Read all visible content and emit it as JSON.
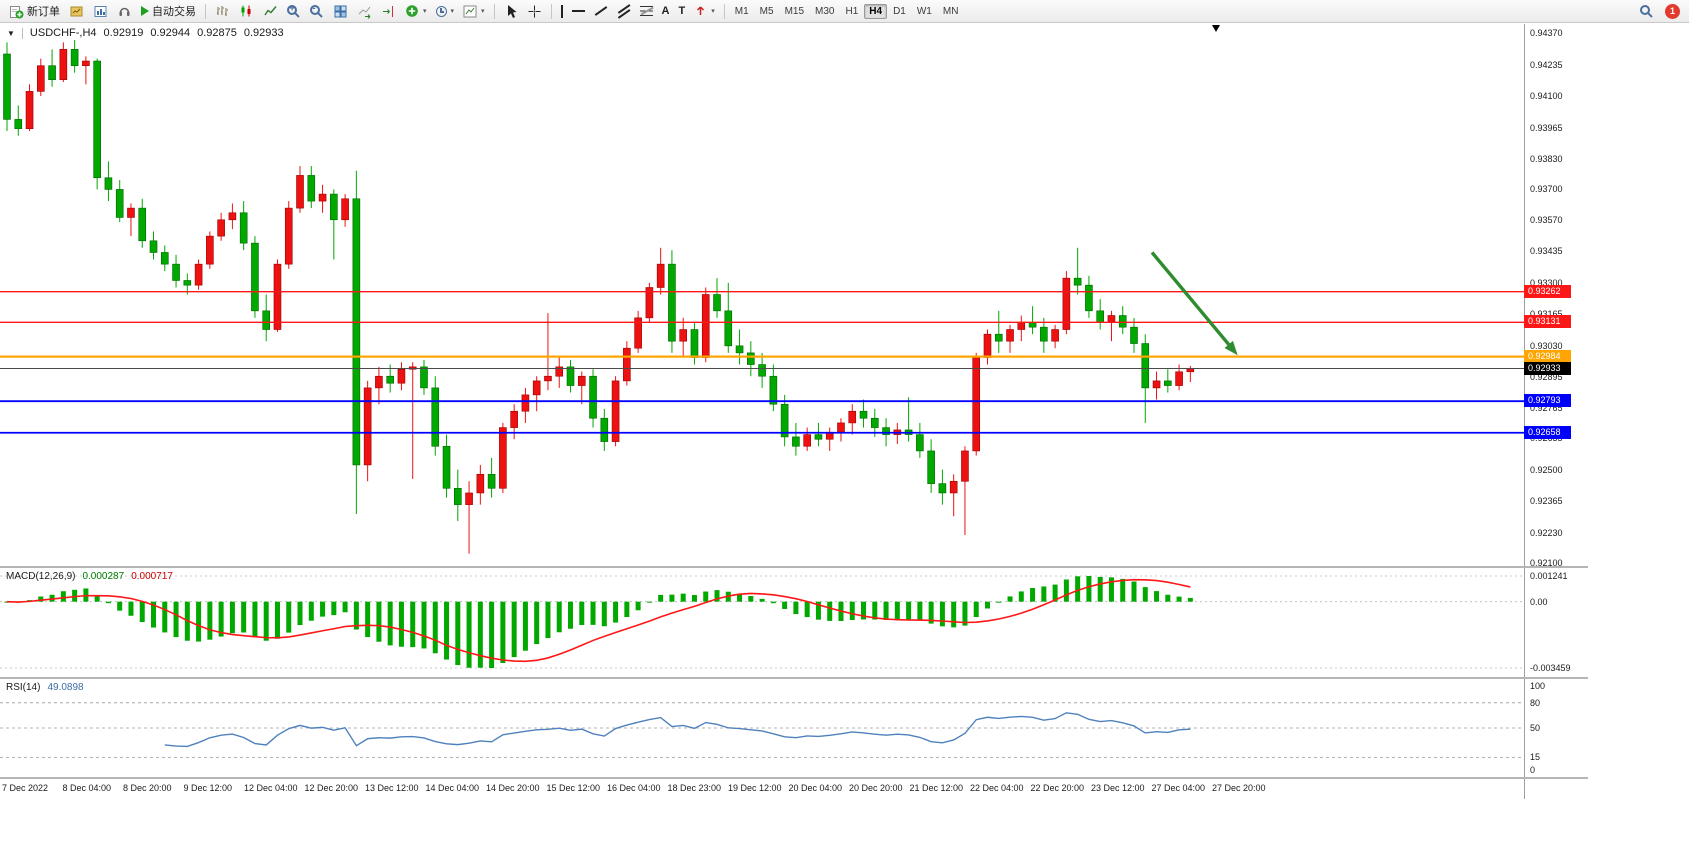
{
  "toolbar": {
    "new_order": "新订单",
    "autotrading": "自动交易",
    "timeframe_buttons": [
      "M1",
      "M5",
      "M15",
      "M30",
      "H1",
      "H4",
      "D1",
      "W1",
      "MN"
    ],
    "active_timeframe": "H4",
    "notification_badge": "1",
    "glyphs": {
      "caret_down": "▾",
      "text_tool": "A",
      "label_tool": "T"
    }
  },
  "chart": {
    "symbol_header": {
      "collapse_arrow": "▼",
      "symbol": "USDCHF-,H4",
      "open": "0.92919",
      "high": "0.92944",
      "low": "0.92875",
      "close": "0.92933"
    }
  },
  "chart_data": {
    "type": "candlestick",
    "symbol": "USDCHF-",
    "timeframe": "H4",
    "up_color": "#ee1111",
    "down_color": "#00a800",
    "y_axis": {
      "min": 0.921,
      "max": 0.9437,
      "labels": [
        "0.94370",
        "0.94235",
        "0.94100",
        "0.93965",
        "0.93830",
        "0.93700",
        "0.93570",
        "0.93435",
        "0.93300",
        "0.93165",
        "0.93030",
        "0.92895",
        "0.92765",
        "0.92635",
        "0.92500",
        "0.92365",
        "0.92230",
        "0.92100"
      ]
    },
    "x_axis": {
      "labels": [
        "7 Dec 2022",
        "8 Dec 04:00",
        "8 Dec 20:00",
        "9 Dec 12:00",
        "12 Dec 04:00",
        "12 Dec 20:00",
        "13 Dec 12:00",
        "14 Dec 04:00",
        "14 Dec 20:00",
        "15 Dec 12:00",
        "16 Dec 04:00",
        "18 Dec 23:00",
        "19 Dec 12:00",
        "20 Dec 04:00",
        "20 Dec 20:00",
        "21 Dec 12:00",
        "22 Dec 04:00",
        "22 Dec 20:00",
        "23 Dec 12:00",
        "27 Dec 04:00",
        "27 Dec 20:00"
      ]
    },
    "levels": [
      {
        "price": 0.93262,
        "label": "0.93262",
        "line_color": "#ff1616",
        "tag_color": "#ff1616",
        "width": 1.4,
        "kind": "resistance"
      },
      {
        "price": 0.93131,
        "label": "0.93131",
        "line_color": "#ff1616",
        "tag_color": "#ff1616",
        "width": 1.4,
        "kind": "resistance"
      },
      {
        "price": 0.92984,
        "label": "0.92984",
        "line_color": "#ffa500",
        "tag_color": "#ffa500",
        "width": 2.2,
        "kind": "pivot"
      },
      {
        "price": 0.92933,
        "label": "0.92933",
        "line_color": "#4a4a4a",
        "tag_color": "#000000",
        "width": 1.1,
        "kind": "current-price"
      },
      {
        "price": 0.92793,
        "label": "0.92793",
        "line_color": "#0000ff",
        "tag_color": "#0000ff",
        "width": 1.8,
        "kind": "support"
      },
      {
        "price": 0.92658,
        "label": "0.92658",
        "line_color": "#0000ff",
        "tag_color": "#0000ff",
        "width": 1.8,
        "kind": "support"
      }
    ],
    "annotation_arrow": {
      "from_bar": 101.6,
      "from_price": 0.9343,
      "to_bar": 109.2,
      "to_price": 0.9299,
      "color": "#2e8b2e"
    },
    "candles": [
      [
        0.9428,
        0.9433,
        0.9395,
        0.94
      ],
      [
        0.94,
        0.9406,
        0.9393,
        0.9396
      ],
      [
        0.9396,
        0.9415,
        0.9395,
        0.9412
      ],
      [
        0.9412,
        0.9426,
        0.941,
        0.9423
      ],
      [
        0.9423,
        0.943,
        0.9414,
        0.9417
      ],
      [
        0.9417,
        0.9433,
        0.9416,
        0.943
      ],
      [
        0.943,
        0.9434,
        0.942,
        0.9423
      ],
      [
        0.9423,
        0.9427,
        0.9415,
        0.9425
      ],
      [
        0.9425,
        0.9426,
        0.937,
        0.9375
      ],
      [
        0.9375,
        0.9382,
        0.9365,
        0.937
      ],
      [
        0.937,
        0.9374,
        0.9356,
        0.9358
      ],
      [
        0.9358,
        0.9364,
        0.935,
        0.9362
      ],
      [
        0.9362,
        0.9366,
        0.9345,
        0.9348
      ],
      [
        0.9348,
        0.9352,
        0.934,
        0.9343
      ],
      [
        0.9343,
        0.9346,
        0.9335,
        0.9338
      ],
      [
        0.9338,
        0.9342,
        0.9328,
        0.9331
      ],
      [
        0.9331,
        0.9334,
        0.9325,
        0.9329
      ],
      [
        0.9329,
        0.934,
        0.9327,
        0.9338
      ],
      [
        0.9338,
        0.9352,
        0.9336,
        0.935
      ],
      [
        0.935,
        0.936,
        0.9348,
        0.9357
      ],
      [
        0.9357,
        0.9364,
        0.9353,
        0.936
      ],
      [
        0.936,
        0.9365,
        0.9344,
        0.9347
      ],
      [
        0.9347,
        0.935,
        0.9315,
        0.9318
      ],
      [
        0.9318,
        0.9325,
        0.9305,
        0.931
      ],
      [
        0.931,
        0.934,
        0.9309,
        0.9338
      ],
      [
        0.9338,
        0.9365,
        0.9336,
        0.9362
      ],
      [
        0.9362,
        0.938,
        0.936,
        0.9376
      ],
      [
        0.9376,
        0.938,
        0.9362,
        0.9365
      ],
      [
        0.9365,
        0.9372,
        0.936,
        0.9368
      ],
      [
        0.9368,
        0.937,
        0.934,
        0.9357
      ],
      [
        0.9357,
        0.9368,
        0.9354,
        0.9366
      ],
      [
        0.9366,
        0.9378,
        0.9231,
        0.9252
      ],
      [
        0.9252,
        0.9288,
        0.9245,
        0.9285
      ],
      [
        0.9285,
        0.9294,
        0.9278,
        0.929
      ],
      [
        0.929,
        0.9295,
        0.9283,
        0.9287
      ],
      [
        0.9287,
        0.9296,
        0.9284,
        0.9293
      ],
      [
        0.9293,
        0.9296,
        0.9246,
        0.9294
      ],
      [
        0.9294,
        0.9297,
        0.9282,
        0.9285
      ],
      [
        0.9285,
        0.929,
        0.9256,
        0.926
      ],
      [
        0.926,
        0.9265,
        0.9238,
        0.9242
      ],
      [
        0.9242,
        0.925,
        0.9228,
        0.9235
      ],
      [
        0.9235,
        0.9245,
        0.9214,
        0.924
      ],
      [
        0.924,
        0.9252,
        0.9235,
        0.9248
      ],
      [
        0.9248,
        0.9255,
        0.9238,
        0.9242
      ],
      [
        0.9242,
        0.927,
        0.924,
        0.9268
      ],
      [
        0.9268,
        0.9278,
        0.9263,
        0.9275
      ],
      [
        0.9275,
        0.9285,
        0.927,
        0.9282
      ],
      [
        0.9282,
        0.929,
        0.9275,
        0.9288
      ],
      [
        0.9288,
        0.9317,
        0.9284,
        0.929
      ],
      [
        0.929,
        0.9298,
        0.9285,
        0.9294
      ],
      [
        0.9294,
        0.9297,
        0.9283,
        0.9286
      ],
      [
        0.9286,
        0.9292,
        0.9278,
        0.929
      ],
      [
        0.929,
        0.9293,
        0.9268,
        0.9272
      ],
      [
        0.9272,
        0.9276,
        0.9258,
        0.9262
      ],
      [
        0.9262,
        0.929,
        0.926,
        0.9288
      ],
      [
        0.9288,
        0.9305,
        0.9286,
        0.9302
      ],
      [
        0.9302,
        0.9318,
        0.93,
        0.9315
      ],
      [
        0.9315,
        0.933,
        0.9313,
        0.9328
      ],
      [
        0.9328,
        0.9345,
        0.9325,
        0.9338
      ],
      [
        0.9338,
        0.9344,
        0.93,
        0.9305
      ],
      [
        0.9305,
        0.9315,
        0.9298,
        0.931
      ],
      [
        0.931,
        0.9313,
        0.9295,
        0.9298
      ],
      [
        0.9298,
        0.9328,
        0.9296,
        0.9325
      ],
      [
        0.9325,
        0.9332,
        0.9315,
        0.9318
      ],
      [
        0.9318,
        0.933,
        0.93,
        0.9303
      ],
      [
        0.9303,
        0.931,
        0.9295,
        0.93
      ],
      [
        0.93,
        0.9305,
        0.929,
        0.9295
      ],
      [
        0.9295,
        0.93,
        0.9285,
        0.929
      ],
      [
        0.929,
        0.9295,
        0.9275,
        0.9278
      ],
      [
        0.9278,
        0.9282,
        0.926,
        0.9264
      ],
      [
        0.9264,
        0.927,
        0.9256,
        0.926
      ],
      [
        0.926,
        0.9268,
        0.9258,
        0.9265
      ],
      [
        0.9265,
        0.927,
        0.926,
        0.9263
      ],
      [
        0.9263,
        0.9268,
        0.9258,
        0.9266
      ],
      [
        0.9266,
        0.9272,
        0.9262,
        0.927
      ],
      [
        0.927,
        0.9278,
        0.9265,
        0.9275
      ],
      [
        0.9275,
        0.928,
        0.9268,
        0.9272
      ],
      [
        0.9272,
        0.9276,
        0.9264,
        0.9268
      ],
      [
        0.9268,
        0.9272,
        0.926,
        0.9265
      ],
      [
        0.9265,
        0.927,
        0.9261,
        0.9267
      ],
      [
        0.9267,
        0.9281,
        0.9262,
        0.9265
      ],
      [
        0.9265,
        0.927,
        0.9255,
        0.9258
      ],
      [
        0.9258,
        0.9263,
        0.924,
        0.9244
      ],
      [
        0.9244,
        0.925,
        0.9235,
        0.924
      ],
      [
        0.924,
        0.9248,
        0.923,
        0.9245
      ],
      [
        0.9245,
        0.926,
        0.9222,
        0.9258
      ],
      [
        0.9258,
        0.93,
        0.9256,
        0.9298
      ],
      [
        0.9298,
        0.931,
        0.9295,
        0.9308
      ],
      [
        0.9308,
        0.9318,
        0.93,
        0.9305
      ],
      [
        0.9305,
        0.9312,
        0.93,
        0.931
      ],
      [
        0.931,
        0.9316,
        0.9305,
        0.9313
      ],
      [
        0.9313,
        0.932,
        0.9308,
        0.9311
      ],
      [
        0.9311,
        0.9315,
        0.93,
        0.9305
      ],
      [
        0.9305,
        0.9312,
        0.9302,
        0.931
      ],
      [
        0.931,
        0.9335,
        0.9308,
        0.9332
      ],
      [
        0.9332,
        0.9345,
        0.9325,
        0.9329
      ],
      [
        0.9329,
        0.9333,
        0.9315,
        0.9318
      ],
      [
        0.9318,
        0.9323,
        0.931,
        0.9313
      ],
      [
        0.9313,
        0.9318,
        0.9305,
        0.9316
      ],
      [
        0.9316,
        0.932,
        0.9308,
        0.9311
      ],
      [
        0.9311,
        0.9315,
        0.93,
        0.9304
      ],
      [
        0.9304,
        0.9308,
        0.927,
        0.9285
      ],
      [
        0.9285,
        0.9292,
        0.928,
        0.9288
      ],
      [
        0.9288,
        0.9293,
        0.9283,
        0.9286
      ],
      [
        0.9286,
        0.9295,
        0.9284,
        0.92919
      ],
      [
        0.92919,
        0.92944,
        0.92875,
        0.92933
      ]
    ],
    "indicators": [
      {
        "id": "macd",
        "title": "MACD(12,26,9)",
        "value_main": "0.000287",
        "value_signal": "0.000717",
        "axis_labels": [
          "0.001241",
          "0.00",
          "-0.003459"
        ],
        "histogram_color": "#00a800",
        "signal_color": "#ff1616"
      },
      {
        "id": "rsi",
        "title": "RSI(14)",
        "value": "49.0898",
        "axis_labels": [
          "100",
          "80",
          "50",
          "15",
          "0"
        ],
        "levels": [
          80,
          50,
          15
        ],
        "line_color": "#4f81bd"
      }
    ]
  }
}
